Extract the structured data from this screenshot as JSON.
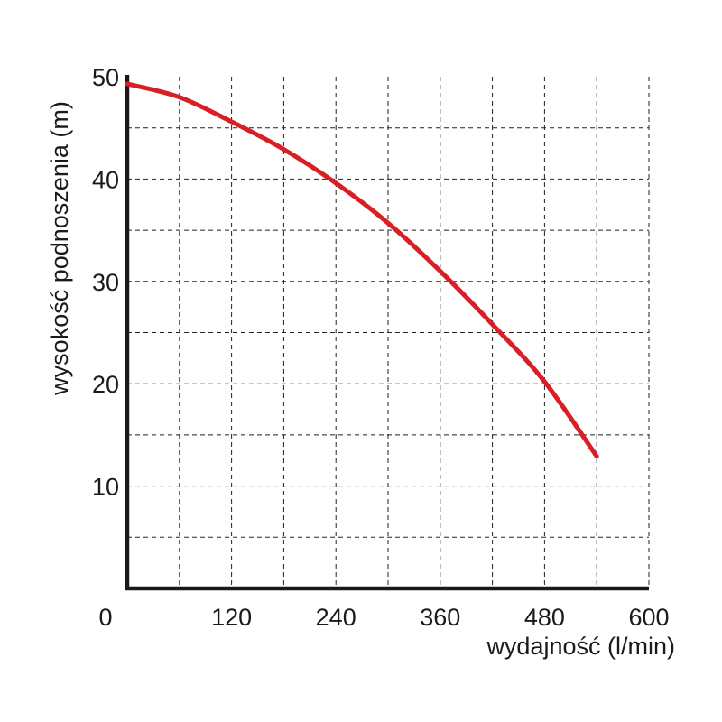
{
  "chart_data": {
    "type": "line",
    "title": "",
    "xlabel": "wydajność (l/min)",
    "ylabel": "wysokość podnoszenia (m)",
    "xlim": [
      0,
      600
    ],
    "ylim": [
      0,
      50
    ],
    "x_ticks": [
      "0",
      "120",
      "240",
      "360",
      "480",
      "600"
    ],
    "y_ticks": [
      "10",
      "20",
      "30",
      "40",
      "50"
    ],
    "grid": true,
    "line_color": "#d91f26",
    "series": [
      {
        "x": [
          0,
          60,
          120,
          180,
          240,
          300,
          360,
          420,
          480,
          540
        ],
        "values": [
          49.3,
          48.0,
          45.6,
          42.9,
          39.6,
          35.7,
          31.0,
          25.8,
          20.2,
          12.9
        ]
      }
    ]
  }
}
